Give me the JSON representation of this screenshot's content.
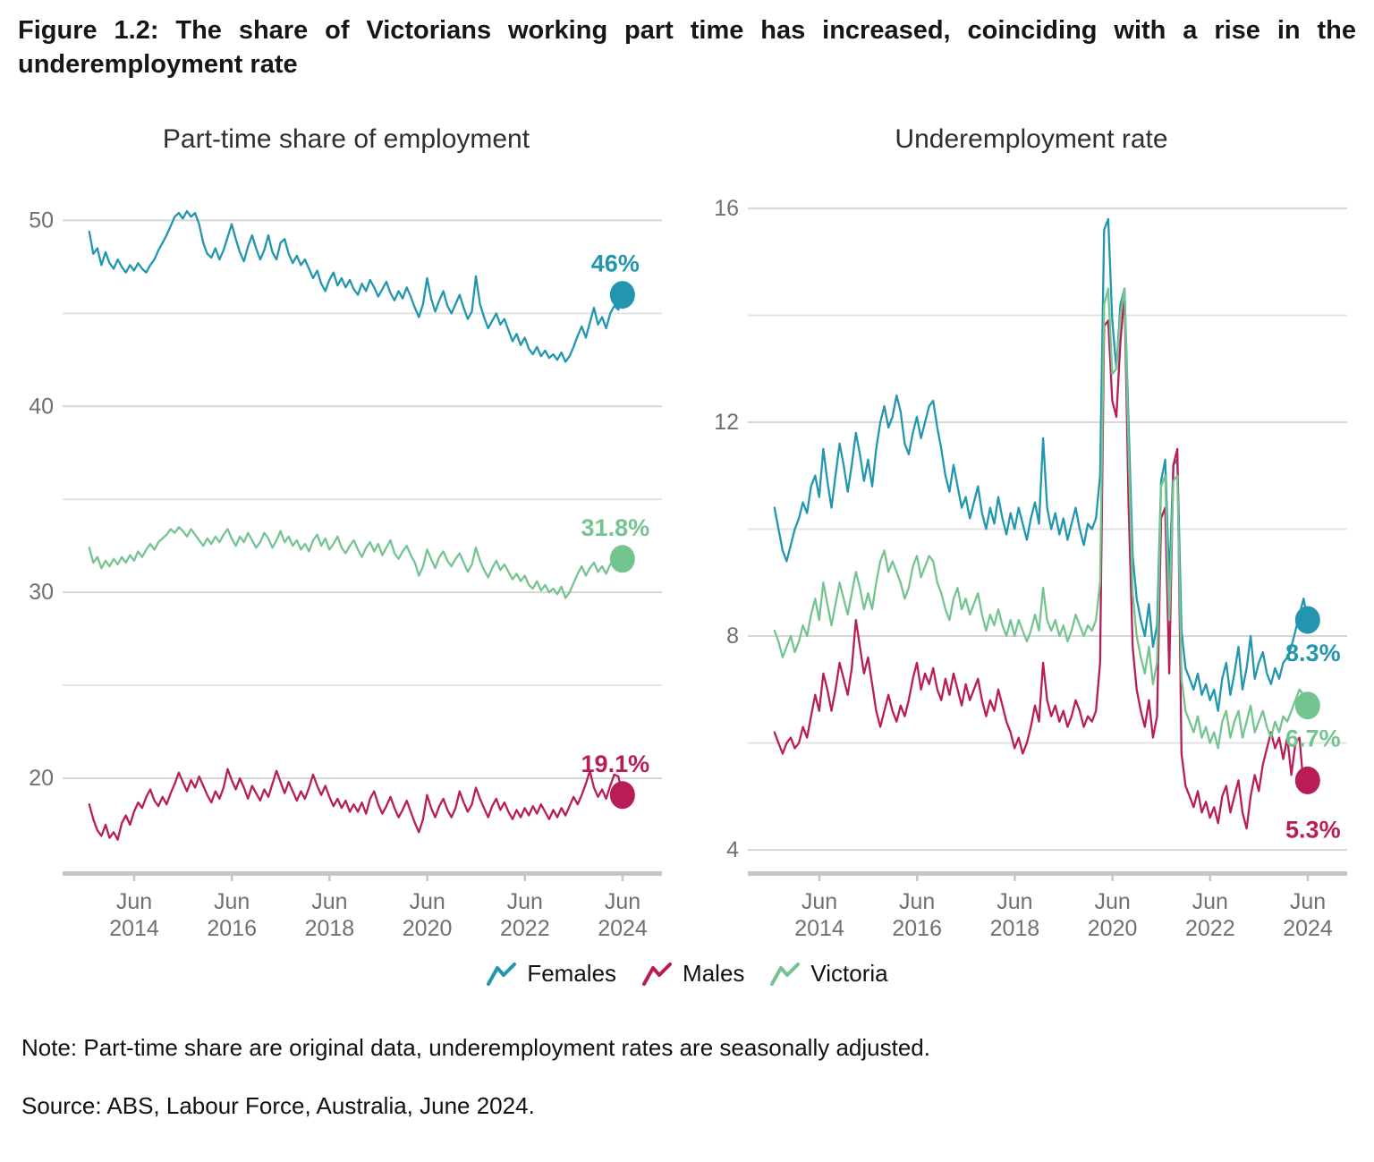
{
  "figure": {
    "title_line1": "Figure 1.2: The share of Victorians working part time has increased, coinciding with a rise in the",
    "title_line2": "underemployment rate",
    "note": "Note: Part-time share are original data, underemployment rates are seasonally adjusted.",
    "source": "Source: ABS, Labour Force, Australia, June 2024."
  },
  "colors": {
    "teal": "#2196AE",
    "crimson": "#B81D58",
    "green": "#74C48F",
    "grid": "#E3E3E3",
    "grid_labeled": "#D6D6D6",
    "axis_line": "#C5C5C5",
    "tick_text": "#707070"
  },
  "legend": {
    "items": [
      {
        "label": "Females",
        "color": "#2196AE"
      },
      {
        "label": "Males",
        "color": "#B81D58"
      },
      {
        "label": "Victoria",
        "color": "#74C48F"
      }
    ]
  },
  "chart_data": [
    {
      "type": "line",
      "title": "Part-time share of employment",
      "x_start": 2013.5,
      "x_step": "monthly",
      "x_tick_values": [
        2014.42,
        2016.42,
        2018.42,
        2020.42,
        2022.42,
        2024.42
      ],
      "x_tick_labels": [
        [
          "Jun",
          "2014"
        ],
        [
          "Jun",
          "2016"
        ],
        [
          "Jun",
          "2018"
        ],
        [
          "Jun",
          "2020"
        ],
        [
          "Jun",
          "2022"
        ],
        [
          "Jun",
          "2024"
        ]
      ],
      "ylim": [
        15.0,
        51.8
      ],
      "grid_values": [
        50,
        45,
        40,
        35,
        30,
        25,
        20
      ],
      "labeled_ticks": [
        50,
        40,
        30,
        20
      ],
      "grid": true,
      "legend_position": "bottom",
      "series": [
        {
          "name": "Females",
          "color": "#2196AE",
          "end_label": "46%",
          "values": [
            49.4,
            48.2,
            48.5,
            47.6,
            48.3,
            47.7,
            47.4,
            47.9,
            47.5,
            47.2,
            47.6,
            47.3,
            47.7,
            47.4,
            47.2,
            47.6,
            47.9,
            48.4,
            48.8,
            49.2,
            49.7,
            50.2,
            50.4,
            50.1,
            50.5,
            50.2,
            50.4,
            49.8,
            48.8,
            48.2,
            48.0,
            48.5,
            47.9,
            48.4,
            49.1,
            49.8,
            49.0,
            48.3,
            47.8,
            48.6,
            49.2,
            48.5,
            47.9,
            48.4,
            49.2,
            48.3,
            47.9,
            48.8,
            49.0,
            48.2,
            47.7,
            48.1,
            47.6,
            47.9,
            47.4,
            46.9,
            47.3,
            46.6,
            46.2,
            46.8,
            47.2,
            46.5,
            46.9,
            46.4,
            46.8,
            46.3,
            46.0,
            46.6,
            46.2,
            46.8,
            46.4,
            45.9,
            46.3,
            46.7,
            46.1,
            45.7,
            46.2,
            45.8,
            46.4,
            45.9,
            45.3,
            44.8,
            45.5,
            46.9,
            45.8,
            45.1,
            45.7,
            46.2,
            45.4,
            45.0,
            45.5,
            46.0,
            45.3,
            44.7,
            45.1,
            47.0,
            45.5,
            44.8,
            44.2,
            44.6,
            45.0,
            44.4,
            44.7,
            44.1,
            43.5,
            43.9,
            43.3,
            43.7,
            43.1,
            42.8,
            43.2,
            42.7,
            43.0,
            42.6,
            42.8,
            42.5,
            42.9,
            42.4,
            42.7,
            43.2,
            43.8,
            44.3,
            43.7,
            44.5,
            45.3,
            44.4,
            44.8,
            44.2,
            45.0,
            45.4,
            45.2,
            46.0
          ]
        },
        {
          "name": "Males",
          "color": "#B81D58",
          "end_label": "19.1%",
          "values": [
            18.6,
            17.8,
            17.2,
            16.9,
            17.5,
            16.8,
            17.1,
            16.7,
            17.6,
            18.0,
            17.5,
            18.2,
            18.7,
            18.4,
            19.0,
            19.4,
            18.8,
            18.5,
            19.0,
            18.6,
            19.2,
            19.7,
            20.3,
            19.8,
            19.3,
            19.9,
            19.5,
            20.1,
            19.6,
            19.1,
            18.7,
            19.3,
            18.9,
            19.5,
            20.5,
            19.9,
            19.4,
            20.0,
            19.5,
            18.9,
            19.6,
            19.2,
            18.8,
            19.4,
            19.0,
            19.7,
            20.4,
            19.8,
            19.2,
            19.8,
            19.3,
            18.8,
            19.3,
            18.9,
            19.5,
            20.2,
            19.6,
            19.1,
            19.6,
            19.0,
            18.5,
            18.9,
            18.4,
            18.8,
            18.2,
            18.6,
            18.2,
            18.7,
            18.1,
            18.9,
            19.3,
            18.6,
            18.1,
            18.5,
            19.0,
            18.4,
            17.9,
            18.3,
            18.8,
            18.2,
            17.6,
            17.1,
            17.8,
            19.1,
            18.4,
            17.9,
            18.5,
            18.9,
            18.3,
            17.9,
            18.4,
            19.3,
            18.7,
            18.2,
            18.6,
            19.5,
            18.9,
            18.4,
            17.9,
            18.5,
            18.9,
            18.3,
            18.7,
            18.2,
            17.8,
            18.3,
            17.9,
            18.4,
            18.0,
            18.5,
            18.1,
            18.6,
            18.2,
            17.8,
            18.3,
            17.9,
            18.4,
            18.0,
            18.5,
            19.0,
            18.6,
            19.1,
            19.7,
            20.4,
            19.5,
            19.0,
            19.4,
            18.9,
            19.6,
            20.2,
            20.1,
            19.1
          ]
        },
        {
          "name": "Victoria",
          "color": "#74C48F",
          "end_label": "31.8%",
          "values": [
            32.4,
            31.6,
            31.9,
            31.3,
            31.7,
            31.4,
            31.8,
            31.5,
            31.9,
            31.6,
            32.0,
            31.7,
            32.2,
            31.9,
            32.3,
            32.6,
            32.3,
            32.7,
            32.9,
            33.1,
            33.4,
            33.2,
            33.5,
            33.3,
            33.0,
            33.4,
            33.1,
            32.8,
            32.5,
            32.9,
            32.6,
            33.0,
            32.7,
            33.1,
            33.4,
            32.9,
            32.5,
            33.0,
            32.7,
            33.2,
            32.8,
            32.4,
            32.7,
            33.2,
            32.9,
            32.4,
            32.8,
            33.3,
            32.7,
            33.0,
            32.5,
            32.8,
            32.3,
            32.6,
            32.2,
            32.8,
            33.1,
            32.5,
            32.9,
            32.3,
            32.6,
            33.0,
            32.4,
            32.1,
            32.5,
            32.8,
            32.3,
            31.9,
            32.4,
            32.7,
            32.2,
            32.6,
            32.0,
            32.4,
            32.8,
            32.1,
            31.8,
            32.2,
            32.5,
            32.0,
            31.6,
            30.9,
            31.4,
            32.3,
            31.8,
            31.3,
            31.9,
            32.2,
            31.7,
            31.4,
            31.8,
            32.1,
            31.6,
            31.1,
            31.5,
            32.4,
            31.7,
            31.2,
            30.8,
            31.3,
            31.7,
            31.2,
            31.5,
            31.1,
            30.7,
            31.0,
            30.6,
            30.9,
            30.4,
            30.2,
            30.6,
            30.1,
            30.4,
            30.0,
            30.2,
            29.9,
            30.3,
            29.7,
            30.0,
            30.5,
            31.0,
            31.4,
            30.9,
            31.3,
            31.6,
            31.1,
            31.4,
            31.0,
            31.5,
            31.7,
            31.5,
            31.8
          ]
        }
      ]
    },
    {
      "type": "line",
      "title": "Underemployment rate",
      "x_start": 2013.5,
      "x_step": "monthly",
      "x_tick_values": [
        2014.42,
        2016.42,
        2018.42,
        2020.42,
        2022.42,
        2024.42
      ],
      "x_tick_labels": [
        [
          "Jun",
          "2014"
        ],
        [
          "Jun",
          "2016"
        ],
        [
          "Jun",
          "2018"
        ],
        [
          "Jun",
          "2020"
        ],
        [
          "Jun",
          "2022"
        ],
        [
          "Jun",
          "2024"
        ]
      ],
      "ylim": [
        3.6,
        16.4
      ],
      "grid_values": [
        16,
        14,
        12,
        10,
        8,
        6,
        4
      ],
      "labeled_ticks": [
        16,
        12,
        8,
        4
      ],
      "grid": true,
      "legend_position": "bottom",
      "series": [
        {
          "name": "Females",
          "color": "#2196AE",
          "end_label": "8.3%",
          "values": [
            10.4,
            10.0,
            9.6,
            9.4,
            9.7,
            10.0,
            10.2,
            10.5,
            10.3,
            10.8,
            11.0,
            10.6,
            11.5,
            10.9,
            10.4,
            11.0,
            11.6,
            11.2,
            10.7,
            11.2,
            11.8,
            11.4,
            10.9,
            11.3,
            10.8,
            11.5,
            12.0,
            12.3,
            11.9,
            12.1,
            12.5,
            12.2,
            11.6,
            11.4,
            11.8,
            12.1,
            11.7,
            12.0,
            12.3,
            12.4,
            11.9,
            11.5,
            11.0,
            10.7,
            11.2,
            10.8,
            10.4,
            10.6,
            10.2,
            10.5,
            10.8,
            10.3,
            10.0,
            10.4,
            10.1,
            10.6,
            10.2,
            9.9,
            10.3,
            10.0,
            10.4,
            10.1,
            9.8,
            10.2,
            10.5,
            10.1,
            11.7,
            10.4,
            10.0,
            10.3,
            9.9,
            10.2,
            9.8,
            10.1,
            10.4,
            10.0,
            9.7,
            10.1,
            10.0,
            10.2,
            11.0,
            15.6,
            15.8,
            13.9,
            13.0,
            14.2,
            14.5,
            12.0,
            9.5,
            8.7,
            8.3,
            8.0,
            8.6,
            7.8,
            8.2,
            10.9,
            11.3,
            9.0,
            11.2,
            11.3,
            8.1,
            7.4,
            7.2,
            7.0,
            7.3,
            6.9,
            7.1,
            6.8,
            7.0,
            6.6,
            7.2,
            7.5,
            6.9,
            7.3,
            7.8,
            7.0,
            7.4,
            8.0,
            7.2,
            7.5,
            7.7,
            7.3,
            7.1,
            7.4,
            7.2,
            7.5,
            7.6,
            7.8,
            8.1,
            8.4,
            8.7,
            8.3
          ]
        },
        {
          "name": "Males",
          "color": "#B81D58",
          "end_label": "5.3%",
          "values": [
            6.2,
            6.0,
            5.8,
            6.0,
            6.1,
            5.9,
            6.0,
            6.3,
            6.1,
            6.5,
            6.9,
            6.6,
            7.3,
            7.0,
            6.6,
            7.0,
            7.5,
            7.2,
            6.9,
            7.4,
            8.3,
            7.8,
            7.3,
            7.6,
            7.1,
            6.6,
            6.3,
            6.6,
            6.9,
            6.6,
            6.4,
            6.7,
            6.5,
            6.8,
            7.2,
            7.5,
            7.0,
            7.3,
            7.1,
            7.4,
            7.0,
            6.8,
            7.2,
            6.9,
            7.3,
            7.0,
            6.7,
            7.1,
            6.8,
            7.0,
            7.2,
            6.8,
            6.5,
            6.8,
            6.6,
            7.0,
            6.7,
            6.4,
            6.2,
            5.9,
            6.1,
            5.8,
            6.0,
            6.3,
            6.7,
            6.4,
            7.5,
            6.8,
            6.5,
            6.7,
            6.4,
            6.6,
            6.3,
            6.5,
            6.8,
            6.6,
            6.3,
            6.5,
            6.4,
            6.6,
            7.5,
            13.8,
            13.9,
            12.4,
            12.1,
            13.5,
            14.4,
            10.5,
            7.8,
            7.0,
            6.6,
            6.3,
            6.8,
            6.1,
            6.5,
            10.2,
            10.4,
            7.3,
            11.2,
            11.5,
            5.8,
            5.2,
            5.0,
            4.8,
            5.1,
            4.7,
            4.9,
            4.6,
            4.8,
            4.5,
            5.0,
            5.2,
            4.7,
            5.0,
            5.3,
            4.7,
            4.4,
            5.0,
            5.4,
            5.1,
            5.6,
            5.9,
            6.2,
            5.9,
            6.1,
            5.7,
            6.1,
            5.4,
            6.0,
            6.1,
            5.2,
            5.3
          ]
        },
        {
          "name": "Victoria",
          "color": "#74C48F",
          "end_label": "6.7%",
          "values": [
            8.1,
            7.9,
            7.6,
            7.8,
            8.0,
            7.7,
            7.9,
            8.2,
            8.0,
            8.4,
            8.7,
            8.3,
            9.0,
            8.6,
            8.2,
            8.6,
            9.0,
            8.7,
            8.4,
            8.8,
            9.2,
            8.9,
            8.5,
            8.8,
            8.5,
            9.0,
            9.4,
            9.6,
            9.2,
            9.4,
            9.2,
            9.0,
            8.7,
            8.9,
            9.3,
            9.5,
            9.1,
            9.3,
            9.5,
            9.4,
            9.0,
            8.8,
            8.5,
            8.3,
            8.7,
            8.9,
            8.5,
            8.7,
            8.4,
            8.6,
            8.8,
            8.4,
            8.1,
            8.4,
            8.2,
            8.5,
            8.2,
            8.0,
            8.3,
            8.0,
            8.3,
            8.1,
            7.9,
            8.1,
            8.4,
            8.1,
            8.9,
            8.3,
            8.1,
            8.3,
            8.0,
            8.2,
            7.9,
            8.1,
            8.4,
            8.2,
            8.0,
            8.2,
            8.1,
            8.3,
            9.0,
            14.2,
            14.5,
            12.9,
            13.0,
            14.0,
            14.5,
            11.5,
            8.8,
            8.0,
            7.6,
            7.3,
            7.8,
            7.1,
            7.5,
            10.8,
            11.0,
            8.3,
            10.9,
            11.0,
            7.2,
            6.6,
            6.4,
            6.2,
            6.5,
            6.1,
            6.3,
            6.0,
            6.2,
            5.9,
            6.4,
            6.6,
            6.1,
            6.4,
            6.6,
            6.1,
            6.4,
            6.7,
            6.2,
            6.4,
            6.6,
            6.3,
            6.1,
            6.4,
            6.2,
            6.5,
            6.4,
            6.6,
            6.8,
            7.0,
            6.9,
            6.7
          ]
        }
      ]
    }
  ]
}
